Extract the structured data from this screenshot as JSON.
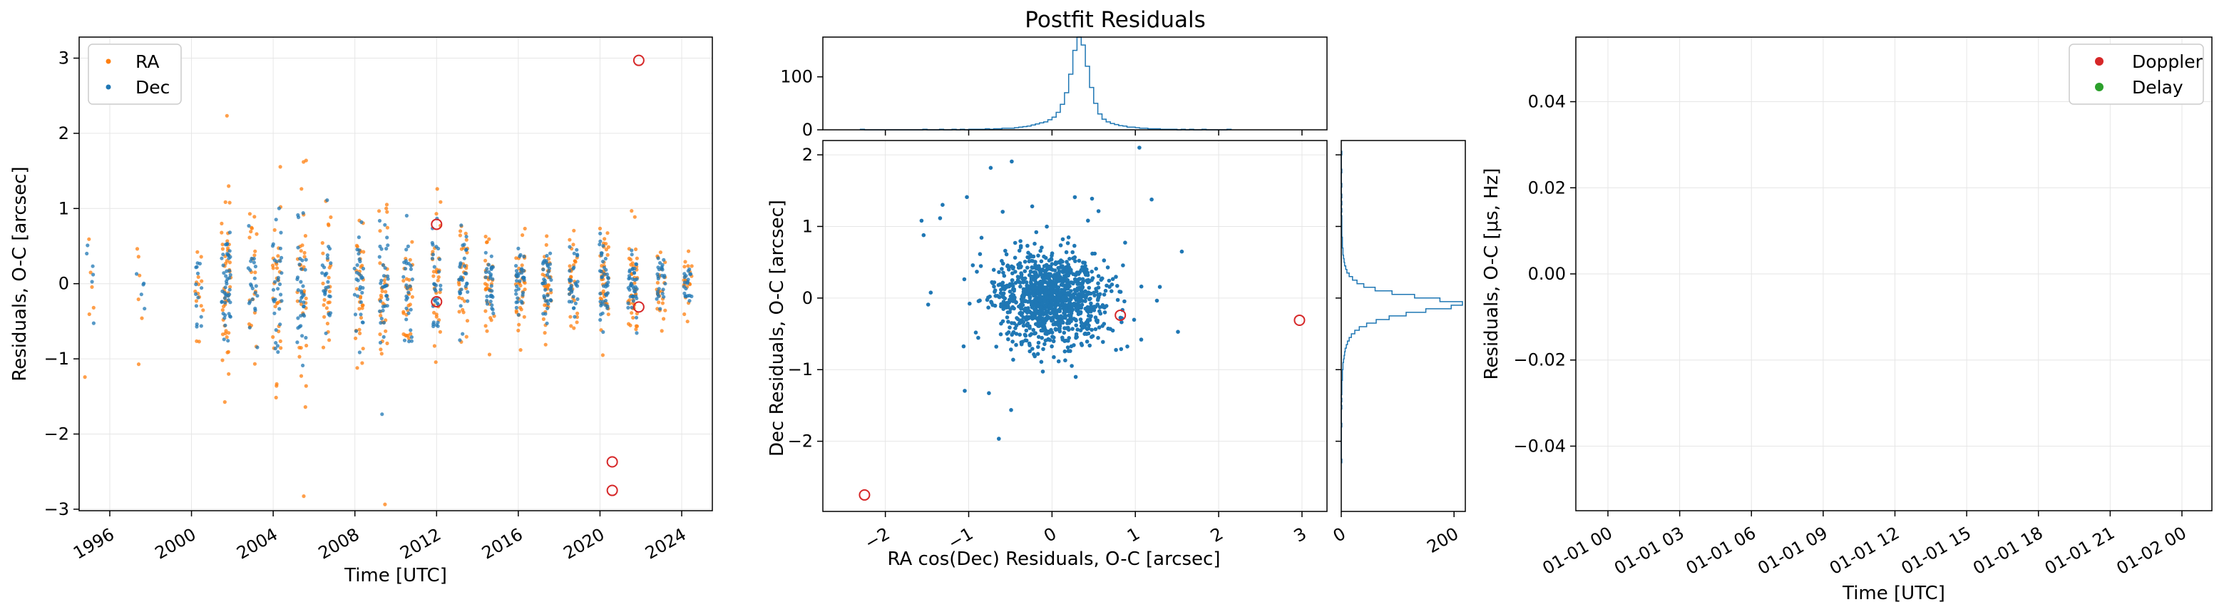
{
  "figure": {
    "title": "Postfit Residuals",
    "colors": {
      "ra": "#ff7f0e",
      "dec": "#1f77b4",
      "outlier_ring": "#d62728",
      "doppler": "#d62728",
      "delay": "#2ca02c",
      "grid": "#e6e6e6"
    }
  },
  "chart_data": [
    {
      "id": "time_residuals",
      "type": "scatter",
      "title": "",
      "xlabel": "Time [UTC]",
      "ylabel": "Residuals, O-C [arcsec]",
      "xlim": [
        1994.5,
        2025.5
      ],
      "ylim": [
        -3.02,
        3.28
      ],
      "xticks": [
        1996,
        2000,
        2004,
        2008,
        2012,
        2016,
        2020,
        2024
      ],
      "yticks": [
        -3,
        -2,
        -1,
        0,
        1,
        2,
        3
      ],
      "grid": true,
      "legend": {
        "placement": "top-left",
        "entries": [
          "RA",
          "Dec"
        ]
      },
      "series": [
        {
          "name": "RA",
          "color": "#ff7f0e",
          "clusters": [
            {
              "t": 1995.0,
              "sd": 0.45,
              "n": 6
            },
            {
              "t": 1997.5,
              "sd": 0.35,
              "n": 6
            },
            {
              "t": 2000.4,
              "sd": 0.45,
              "n": 14
            },
            {
              "t": 2001.7,
              "sd": 0.75,
              "n": 45
            },
            {
              "t": 2003.0,
              "sd": 0.55,
              "n": 22
            },
            {
              "t": 2004.2,
              "sd": 0.65,
              "n": 30
            },
            {
              "t": 2005.4,
              "sd": 0.7,
              "n": 35
            },
            {
              "t": 2006.6,
              "sd": 0.55,
              "n": 25
            },
            {
              "t": 2008.2,
              "sd": 0.55,
              "n": 30
            },
            {
              "t": 2009.4,
              "sd": 0.7,
              "n": 35
            },
            {
              "t": 2010.6,
              "sd": 0.45,
              "n": 28
            },
            {
              "t": 2012.0,
              "sd": 0.45,
              "n": 30
            },
            {
              "t": 2013.3,
              "sd": 0.4,
              "n": 30
            },
            {
              "t": 2014.6,
              "sd": 0.35,
              "n": 30
            },
            {
              "t": 2016.1,
              "sd": 0.35,
              "n": 35
            },
            {
              "t": 2017.4,
              "sd": 0.35,
              "n": 35
            },
            {
              "t": 2018.7,
              "sd": 0.3,
              "n": 30
            },
            {
              "t": 2020.2,
              "sd": 0.45,
              "n": 40
            },
            {
              "t": 2021.6,
              "sd": 0.35,
              "n": 40
            },
            {
              "t": 2023.0,
              "sd": 0.3,
              "n": 25
            },
            {
              "t": 2024.3,
              "sd": 0.2,
              "n": 20
            }
          ]
        },
        {
          "name": "Dec",
          "color": "#1f77b4",
          "clusters": [
            {
              "t": 1995.0,
              "sd": 0.25,
              "n": 6
            },
            {
              "t": 1997.5,
              "sd": 0.2,
              "n": 5
            },
            {
              "t": 2000.4,
              "sd": 0.35,
              "n": 14
            },
            {
              "t": 2001.7,
              "sd": 0.45,
              "n": 45
            },
            {
              "t": 2003.0,
              "sd": 0.4,
              "n": 22
            },
            {
              "t": 2004.2,
              "sd": 0.5,
              "n": 30
            },
            {
              "t": 2005.4,
              "sd": 0.45,
              "n": 35
            },
            {
              "t": 2006.6,
              "sd": 0.35,
              "n": 25
            },
            {
              "t": 2008.2,
              "sd": 0.4,
              "n": 30
            },
            {
              "t": 2009.4,
              "sd": 0.45,
              "n": 35
            },
            {
              "t": 2010.6,
              "sd": 0.3,
              "n": 28
            },
            {
              "t": 2012.0,
              "sd": 0.3,
              "n": 30
            },
            {
              "t": 2013.3,
              "sd": 0.25,
              "n": 30
            },
            {
              "t": 2014.6,
              "sd": 0.25,
              "n": 30
            },
            {
              "t": 2016.1,
              "sd": 0.25,
              "n": 35
            },
            {
              "t": 2017.4,
              "sd": 0.25,
              "n": 35
            },
            {
              "t": 2018.7,
              "sd": 0.2,
              "n": 30
            },
            {
              "t": 2020.2,
              "sd": 0.3,
              "n": 40
            },
            {
              "t": 2021.6,
              "sd": 0.25,
              "n": 40
            },
            {
              "t": 2023.0,
              "sd": 0.2,
              "n": 25
            },
            {
              "t": 2024.3,
              "sd": 0.15,
              "n": 20
            }
          ]
        }
      ],
      "outliers": [
        {
          "x": 2012.0,
          "y": 0.79
        },
        {
          "x": 2012.0,
          "y": -0.24
        },
        {
          "x": 2020.6,
          "y": -2.37
        },
        {
          "x": 2020.6,
          "y": -2.75
        },
        {
          "x": 2021.9,
          "y": 2.97
        },
        {
          "x": 2021.9,
          "y": -0.31
        }
      ]
    },
    {
      "id": "ra_dec_scatter",
      "type": "scatter",
      "title": "Postfit Residuals",
      "xlabel": "RA cos(Dec) Residuals, O-C [arcsec]",
      "ylabel": "Dec Residuals, O-C [arcsec]",
      "xlim": [
        -2.75,
        3.3
      ],
      "ylim": [
        -2.98,
        2.2
      ],
      "xticks": [
        -2,
        -1,
        0,
        1,
        2,
        3
      ],
      "yticks": [
        -2,
        -1,
        0,
        1,
        2
      ],
      "grid": true,
      "cloud": {
        "color": "#1f77b4",
        "n": 1150,
        "sd_x": 0.33,
        "sd_y": 0.32
      },
      "outliers": [
        {
          "x": -2.25,
          "y": -2.75
        },
        {
          "x": 0.82,
          "y": -0.24
        },
        {
          "x": 2.97,
          "y": -0.31
        }
      ]
    },
    {
      "id": "ra_histogram",
      "type": "bar",
      "title": "",
      "xlim": [
        -2.75,
        3.3
      ],
      "ylim": [
        0,
        175
      ],
      "yticks": [
        0,
        100
      ],
      "bin_width": 0.05,
      "bin_start": -2.3,
      "counts": [
        1,
        0,
        0,
        0,
        0,
        0,
        0,
        0,
        0,
        0,
        0,
        0,
        0,
        0,
        0,
        1,
        0,
        0,
        0,
        1,
        0,
        0,
        1,
        0,
        1,
        0,
        1,
        1,
        1,
        1,
        2,
        1,
        2,
        2,
        3,
        3,
        3,
        4,
        5,
        6,
        7,
        9,
        11,
        13,
        15,
        19,
        24,
        33,
        48,
        70,
        105,
        150,
        175,
        160,
        120,
        80,
        50,
        30,
        20,
        15,
        12,
        10,
        8,
        7,
        5,
        5,
        4,
        3,
        3,
        2,
        2,
        2,
        1,
        1,
        1,
        1,
        0,
        1,
        0,
        1,
        0,
        0,
        1,
        0,
        0,
        0,
        0,
        0,
        1
      ]
    },
    {
      "id": "dec_histogram",
      "type": "bar",
      "title": "",
      "xlim": [
        0,
        220
      ],
      "ylim": [
        -2.98,
        2.2
      ],
      "xticks": [
        0,
        200
      ],
      "bin_width": 0.05,
      "bin_start": -2.3,
      "counts": [
        1,
        0,
        0,
        0,
        0,
        0,
        0,
        0,
        0,
        0,
        1,
        0,
        0,
        0,
        0,
        1,
        0,
        1,
        0,
        1,
        1,
        1,
        1,
        2,
        2,
        2,
        3,
        3,
        4,
        5,
        6,
        7,
        9,
        11,
        14,
        18,
        24,
        32,
        45,
        62,
        85,
        115,
        150,
        195,
        215,
        175,
        130,
        90,
        60,
        40,
        28,
        20,
        14,
        10,
        8,
        6,
        5,
        4,
        3,
        3,
        2,
        2,
        2,
        1,
        1,
        1,
        1,
        1,
        1,
        0,
        1,
        0,
        1,
        0,
        1,
        0,
        0,
        1,
        0,
        0,
        0,
        1,
        0,
        0,
        0,
        0,
        1
      ]
    },
    {
      "id": "radar_residuals",
      "type": "scatter",
      "title": "",
      "xlabel": "Time [UTC]",
      "ylabel": "Residuals, O-C [μs, Hz]",
      "xlim_label": "empty",
      "xticks": [
        "01-01 00",
        "01-01 03",
        "01-01 06",
        "01-01 09",
        "01-01 12",
        "01-01 15",
        "01-01 18",
        "01-01 21",
        "01-02 00"
      ],
      "ylim": [
        -0.055,
        0.055
      ],
      "yticks": [
        -0.04,
        -0.02,
        0.0,
        0.02,
        0.04
      ],
      "ytick_labels": [
        "−0.04",
        "−0.02",
        "0.00",
        "0.02",
        "0.04"
      ],
      "grid": true,
      "legend": {
        "placement": "top-right",
        "entries": [
          "Doppler",
          "Delay"
        ]
      },
      "series": [
        {
          "name": "Doppler",
          "color": "#d62728",
          "values": []
        },
        {
          "name": "Delay",
          "color": "#2ca02c",
          "values": []
        }
      ]
    }
  ]
}
